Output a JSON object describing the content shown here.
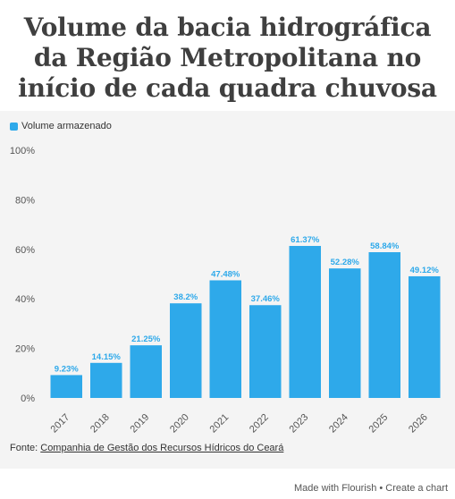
{
  "title": "Volume da bacia hidrográfica da Região Metropolitana no início de cada quadra chuvosa",
  "legend": {
    "label": "Volume armazenado",
    "color": "#2ea9ea"
  },
  "source": {
    "prefix": "Fonte: ",
    "link_text": "Companhia de Gestão dos Recursos Hídricos do Ceará"
  },
  "footer": {
    "made_with": "Made with Flourish",
    "separator": " • ",
    "create": "Create a chart"
  },
  "chart_data": {
    "type": "bar",
    "categories": [
      "2017",
      "2018",
      "2019",
      "2020",
      "2021",
      "2022",
      "2023",
      "2024",
      "2025",
      "2026"
    ],
    "series": [
      {
        "name": "Volume armazenado",
        "values": [
          9.23,
          14.15,
          21.25,
          38.2,
          47.48,
          37.46,
          61.37,
          52.28,
          58.84,
          49.12
        ],
        "labels": [
          "9.23%",
          "14.15%",
          "21.25%",
          "38.2%",
          "47.48%",
          "37.46%",
          "61.37%",
          "52.28%",
          "58.84%",
          "49.12%"
        ]
      }
    ],
    "yticks": [
      "0%",
      "20%",
      "40%",
      "60%",
      "80%",
      "100%"
    ],
    "ytick_values": [
      0,
      20,
      40,
      60,
      80,
      100
    ],
    "ylim": [
      0,
      100
    ],
    "grid": false,
    "legend_position": "top-left",
    "colors": {
      "bar": "#2ea9ea",
      "label": "#2ea9ea"
    }
  }
}
